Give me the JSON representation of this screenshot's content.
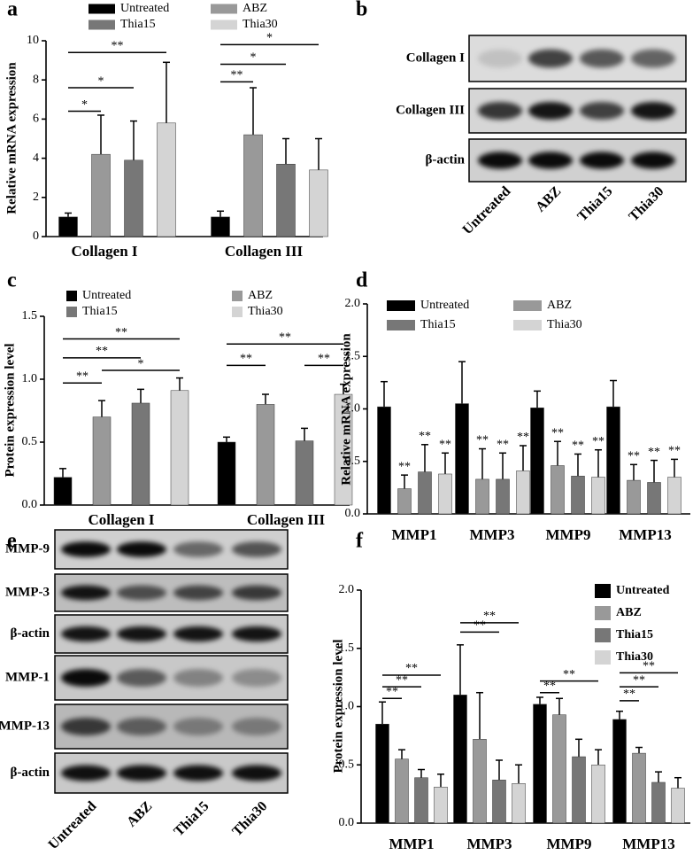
{
  "chart_data": [
    {
      "type": "bar",
      "panel": "a",
      "ylabel": "Relative mRNA expression",
      "categories": [
        "Collagen I",
        "Collagen III"
      ],
      "ylim": [
        0,
        10
      ],
      "yticks": [
        0,
        2,
        4,
        6,
        8,
        10
      ],
      "series": [
        {
          "name": "Untreated",
          "color": "#000000",
          "values": [
            1.0,
            1.0
          ],
          "errors": [
            0.2,
            0.3
          ]
        },
        {
          "name": "ABZ",
          "color": "#999999",
          "values": [
            4.2,
            5.2
          ],
          "errors": [
            2.0,
            2.4
          ]
        },
        {
          "name": "Thia15",
          "color": "#777777",
          "values": [
            3.9,
            3.7
          ],
          "errors": [
            2.0,
            1.3
          ]
        },
        {
          "name": "Thia30",
          "color": "#d4d4d4",
          "values": [
            5.8,
            3.4
          ],
          "errors": [
            3.1,
            1.6
          ]
        }
      ],
      "brackets": [
        "*",
        "*",
        "**",
        "**",
        "*",
        "*"
      ]
    },
    {
      "type": "bar",
      "panel": "c",
      "ylabel": "Protein expression level",
      "categories": [
        "Collagen I",
        "Collagen III"
      ],
      "ylim": [
        0,
        1.5
      ],
      "yticks": [
        {
          "value": 0,
          "label": "0.0"
        },
        0.5,
        {
          "value": 1,
          "label": "1.0"
        },
        1.5
      ],
      "series": [
        {
          "name": "Untreated",
          "color": "#000000",
          "values": [
            0.22,
            0.5
          ],
          "errors": [
            0.07,
            0.04
          ]
        },
        {
          "name": "ABZ",
          "color": "#999999",
          "values": [
            0.7,
            0.8
          ],
          "errors": [
            0.13,
            0.08
          ]
        },
        {
          "name": "Thia15",
          "color": "#777777",
          "values": [
            0.81,
            0.51
          ],
          "errors": [
            0.11,
            0.1
          ]
        },
        {
          "name": "Thia30",
          "color": "#d4d4d4",
          "values": [
            0.91,
            0.88
          ],
          "errors": [
            0.1,
            0.08
          ]
        }
      ],
      "brackets": [
        "**",
        "*",
        "**",
        "**",
        "**",
        "**",
        "**"
      ]
    },
    {
      "type": "bar",
      "panel": "d",
      "ylabel": "Relative mRNA expression",
      "categories": [
        "MMP1",
        "MMP3",
        "MMP9",
        "MMP13"
      ],
      "ylim": [
        0,
        2
      ],
      "yticks": [
        {
          "value": 0,
          "label": "0.0"
        },
        0.5,
        {
          "value": 1,
          "label": "1.0"
        },
        1.5,
        {
          "value": 2,
          "label": "2.0"
        }
      ],
      "series": [
        {
          "name": "Untreated",
          "color": "#000000",
          "values": [
            1.02,
            1.05,
            1.01,
            1.02
          ],
          "errors": [
            0.24,
            0.4,
            0.16,
            0.25
          ]
        },
        {
          "name": "ABZ",
          "color": "#999999",
          "values": [
            0.24,
            0.33,
            0.46,
            0.32
          ],
          "errors": [
            0.13,
            0.29,
            0.23,
            0.15
          ],
          "stars": [
            "**",
            "**",
            "**",
            "**"
          ]
        },
        {
          "name": "Thia15",
          "color": "#777777",
          "values": [
            0.4,
            0.33,
            0.36,
            0.3
          ],
          "errors": [
            0.26,
            0.25,
            0.21,
            0.21
          ],
          "stars": [
            "**",
            "**",
            "**",
            "**"
          ]
        },
        {
          "name": "Thia30",
          "color": "#d4d4d4",
          "values": [
            0.38,
            0.41,
            0.35,
            0.35
          ],
          "errors": [
            0.2,
            0.24,
            0.26,
            0.17
          ],
          "stars": [
            "**",
            "**",
            "**",
            "**"
          ]
        }
      ]
    },
    {
      "type": "bar",
      "panel": "f",
      "ylabel": "Protein expression level",
      "categories": [
        "MMP1",
        "MMP3",
        "MMP9",
        "MMP13"
      ],
      "ylim": [
        0,
        2
      ],
      "yticks": [
        {
          "value": 0,
          "label": "0.0"
        },
        0.5,
        {
          "value": 1,
          "label": "1.0"
        },
        1.5,
        {
          "value": 2,
          "label": "2.0"
        }
      ],
      "series": [
        {
          "name": "Untreated",
          "color": "#000000",
          "values": [
            0.85,
            1.1,
            1.02,
            0.89
          ],
          "errors": [
            0.19,
            0.43,
            0.06,
            0.07
          ]
        },
        {
          "name": "ABZ",
          "color": "#999999",
          "values": [
            0.55,
            0.72,
            0.93,
            0.6
          ],
          "errors": [
            0.08,
            0.4,
            0.14,
            0.05
          ]
        },
        {
          "name": "Thia15",
          "color": "#777777",
          "values": [
            0.39,
            0.37,
            0.57,
            0.35
          ],
          "errors": [
            0.07,
            0.17,
            0.15,
            0.09
          ]
        },
        {
          "name": "Thia30",
          "color": "#d4d4d4",
          "values": [
            0.31,
            0.34,
            0.5,
            0.3
          ],
          "errors": [
            0.11,
            0.16,
            0.13,
            0.09
          ]
        }
      ],
      "brackets": [
        "**",
        "**",
        "**",
        "**",
        "**",
        "**",
        "**",
        "**",
        "**",
        "**"
      ]
    }
  ],
  "blots": [
    {
      "panel": "b",
      "rows": [
        "Collagen I",
        "Collagen III",
        "β-actin"
      ],
      "lanes": [
        "Untreated",
        "ABZ",
        "Thia15",
        "Thia30"
      ]
    },
    {
      "panel": "e",
      "rows": [
        "MMP-9",
        "MMP-3",
        "β-actin",
        "MMP-1",
        "MMP-13",
        "β-actin"
      ],
      "lanes": [
        "Untreated",
        "ABZ",
        "Thia15",
        "Thia30"
      ]
    }
  ]
}
